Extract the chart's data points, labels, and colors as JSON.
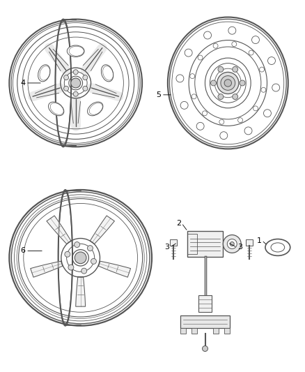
{
  "background_color": "#ffffff",
  "line_color": "#555555",
  "label_color": "#000000",
  "fig_width": 4.38,
  "fig_height": 5.33,
  "dpi": 100
}
